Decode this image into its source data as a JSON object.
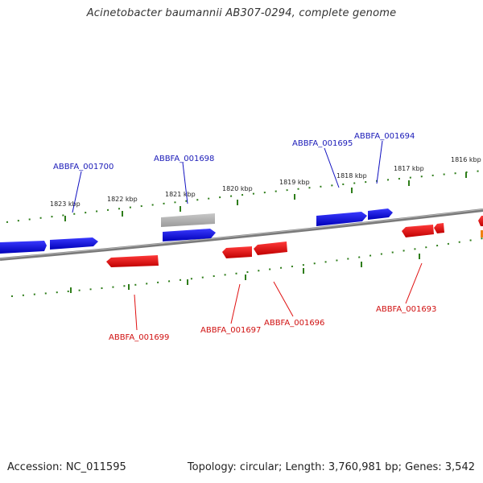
{
  "title": "Acinetobacter baumannii AB307-0294, complete genome",
  "footer": {
    "accession": "Accession: NC_011595",
    "stats": "Topology: circular; Length: 3,760,981 bp; Genes: 3,542"
  },
  "colors": {
    "forward_gene": "#1010e0",
    "reverse_gene": "#e81010",
    "other_feature": "#b0b0b0",
    "backbone": "#808080",
    "ticks": "#2e7d1a"
  },
  "scale_labels": [
    "1823 kbp",
    "1822 kbp",
    "1821 kbp",
    "1820 kbp",
    "1819 kbp",
    "1818 kbp",
    "1817 kbp",
    "1816 kbp"
  ],
  "gene_labels": {
    "forward": [
      "ABBFA_001700",
      "ABBFA_001698",
      "ABBFA_001695",
      "ABBFA_001694"
    ],
    "reverse": [
      "ABBFA_001699",
      "ABBFA_001697",
      "ABBFA_001696",
      "ABBFA_001693"
    ]
  }
}
